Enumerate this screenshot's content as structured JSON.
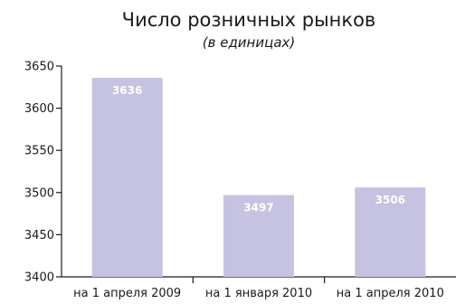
{
  "chart_data": {
    "type": "bar",
    "title": "Число розничных рынков",
    "subtitle": "(в единицах)",
    "categories": [
      "на 1 апреля 2009",
      "на 1 января 2010",
      "на 1 апреля 2010"
    ],
    "values": [
      3636,
      3497,
      3506
    ],
    "data_labels": [
      "3636",
      "3497",
      "3506"
    ],
    "ylim": [
      3400,
      3650
    ],
    "yticks": [
      3400,
      3450,
      3500,
      3550,
      3600,
      3650
    ],
    "grid": false,
    "bar_color": "#c6c2e2",
    "label_color": "#ffffff",
    "axis_color": "#1a1a1a"
  }
}
